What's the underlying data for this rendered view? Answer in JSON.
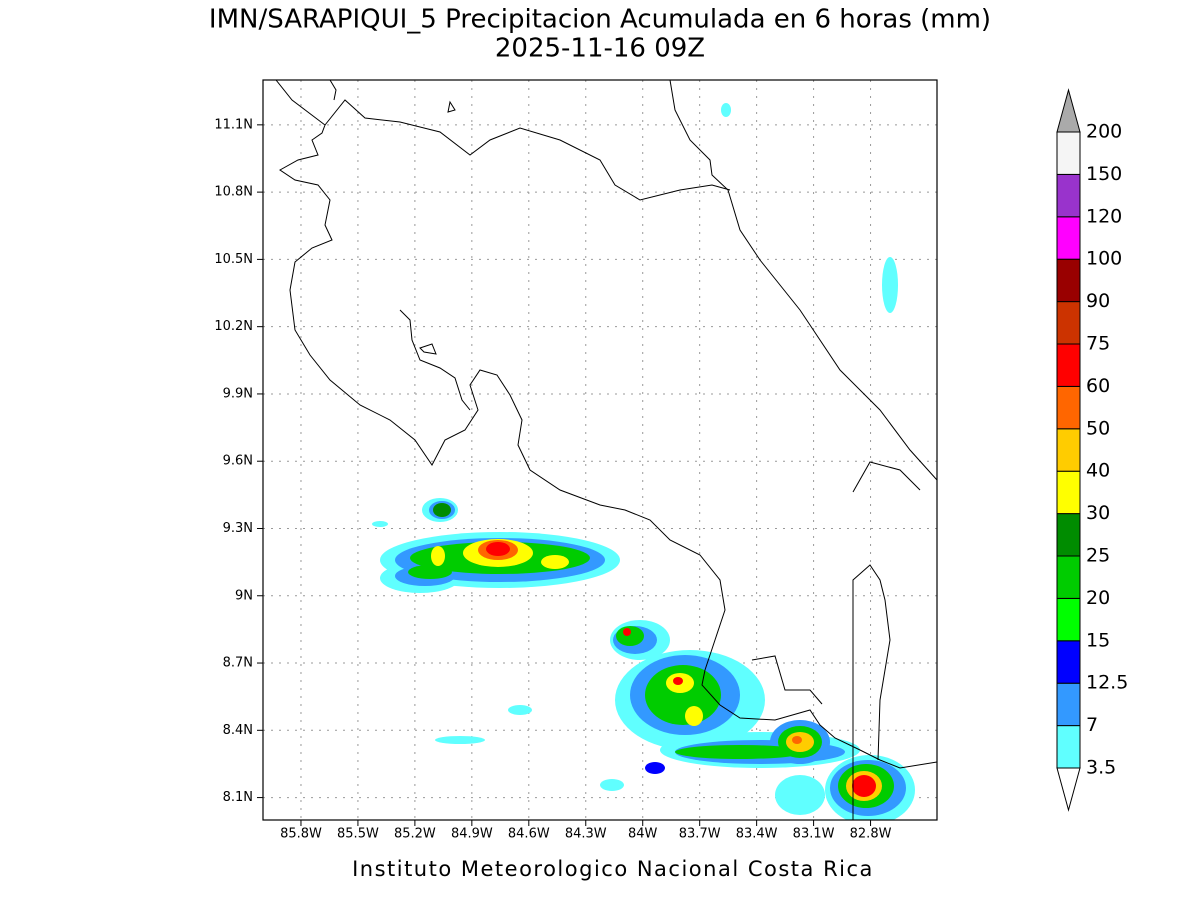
{
  "header": {
    "title": "IMN/SARAPIQUI_5 Precipitacion Acumulada en 6 horas (mm)",
    "subtitle": "2025-11-16 09Z"
  },
  "map": {
    "xlim": [
      -86.0,
      -82.45
    ],
    "ylim": [
      8.0,
      11.3
    ],
    "xticks": [
      {
        "value": -85.8,
        "label": "85.8W"
      },
      {
        "value": -85.5,
        "label": "85.5W"
      },
      {
        "value": -85.2,
        "label": "85.2W"
      },
      {
        "value": -84.9,
        "label": "84.9W"
      },
      {
        "value": -84.6,
        "label": "84.6W"
      },
      {
        "value": -84.3,
        "label": "84.3W"
      },
      {
        "value": -84.0,
        "label": "84W"
      },
      {
        "value": -83.7,
        "label": "83.7W"
      },
      {
        "value": -83.4,
        "label": "83.4W"
      },
      {
        "value": -83.1,
        "label": "83.1W"
      },
      {
        "value": -82.8,
        "label": "82.8W"
      }
    ],
    "yticks": [
      {
        "value": 8.1,
        "label": "8.1N"
      },
      {
        "value": 8.4,
        "label": "8.4N"
      },
      {
        "value": 8.7,
        "label": "8.7N"
      },
      {
        "value": 9.0,
        "label": "9N"
      },
      {
        "value": 9.3,
        "label": "9.3N"
      },
      {
        "value": 9.6,
        "label": "9.6N"
      },
      {
        "value": 9.9,
        "label": "9.9N"
      },
      {
        "value": 10.2,
        "label": "10.2N"
      },
      {
        "value": 10.5,
        "label": "10.5N"
      },
      {
        "value": 10.8,
        "label": "10.8N"
      },
      {
        "value": 11.1,
        "label": "11.1N"
      }
    ],
    "grid": true
  },
  "colorbar": {
    "levels": [
      3.5,
      7,
      12.5,
      15,
      20,
      25,
      30,
      40,
      50,
      60,
      75,
      90,
      100,
      120,
      150,
      200
    ],
    "colors": [
      "#ffffff",
      "#60ffff",
      "#3399ff",
      "#0000ff",
      "#00ff00",
      "#00cc00",
      "#008c00",
      "#ffff00",
      "#ffcc00",
      "#ff6600",
      "#ff0000",
      "#cc3300",
      "#990000",
      "#ff00ff",
      "#9933cc",
      "#f5f5f5",
      "#aaaaaa"
    ]
  },
  "footer": "Instituto Meteorologico Nacional Costa Rica"
}
